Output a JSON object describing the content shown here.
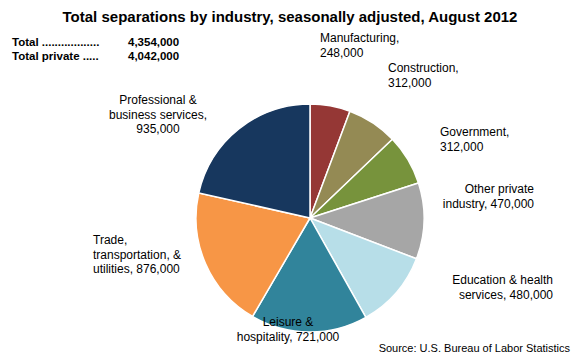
{
  "chart_data": {
    "type": "pie",
    "title": "Total separations by industry, seasonally adjusted, August 2012",
    "totals": [
      {
        "label": "Total ..................",
        "value": 4354000,
        "value_label": "4,354,000"
      },
      {
        "label": "Total private .....",
        "value": 4042000,
        "value_label": "4,042,000"
      }
    ],
    "categories": [
      "Manufacturing,",
      "Construction,",
      "Government,",
      "Other private industry,",
      "Education & health services,",
      "Leisure & hospitality,",
      "Trade, transportation, & utilities,",
      "Professional & business services,"
    ],
    "values": [
      248000,
      312000,
      312000,
      470000,
      480000,
      721000,
      876000,
      935000
    ],
    "value_labels": [
      "248,000",
      "312,000",
      "312,000",
      "470,000",
      "480,000",
      "721,000",
      "876,000",
      "935,000"
    ],
    "colors": [
      "#953735",
      "#948a54",
      "#77933c",
      "#a6a6a6",
      "#b7dee8",
      "#31849b",
      "#f79646",
      "#17375e"
    ],
    "data_labels": true,
    "source": "Source: U.S. Bureau of Labor Statistics"
  }
}
